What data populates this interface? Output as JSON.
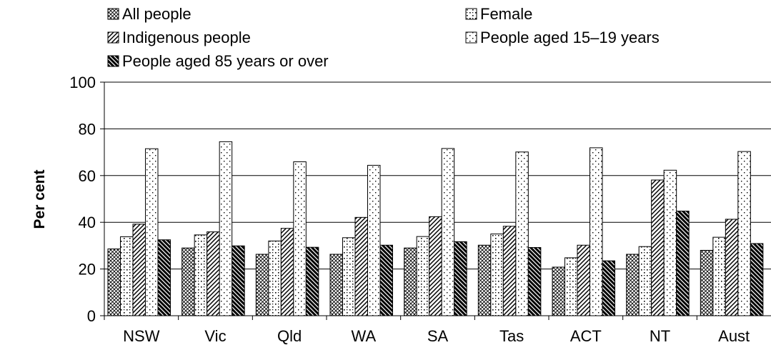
{
  "chart_data": {
    "type": "bar",
    "title": "",
    "xlabel": "",
    "ylabel": "Per cent",
    "ylim": [
      0,
      100
    ],
    "yticks": [
      0,
      20,
      40,
      60,
      80,
      100
    ],
    "grid": true,
    "legend_position": "top",
    "categories": [
      "NSW",
      "Vic",
      "Qld",
      "WA",
      "SA",
      "Tas",
      "ACT",
      "NT",
      "Aust"
    ],
    "series": [
      {
        "name": "All people",
        "pattern": "crosshatch",
        "values": [
          28.6,
          29.0,
          26.3,
          26.3,
          29.0,
          30.2,
          20.8,
          26.3,
          28.0
        ]
      },
      {
        "name": "Female",
        "pattern": "diamonds",
        "values": [
          33.8,
          34.6,
          32.0,
          33.4,
          33.9,
          35.0,
          24.8,
          29.6,
          33.6
        ]
      },
      {
        "name": "Indigenous people",
        "pattern": "diagonal",
        "values": [
          39.2,
          35.9,
          37.4,
          42.1,
          42.4,
          38.3,
          30.2,
          58.1,
          41.3
        ]
      },
      {
        "name": "People aged 15–19 years",
        "pattern": "dots",
        "values": [
          71.5,
          74.5,
          65.9,
          64.4,
          71.6,
          70.1,
          71.9,
          62.3,
          70.3
        ]
      },
      {
        "name": "People aged 85 years or over",
        "pattern": "darkdiagonal",
        "values": [
          32.5,
          29.9,
          29.3,
          30.2,
          31.7,
          29.2,
          23.5,
          44.8,
          30.9
        ]
      }
    ]
  }
}
